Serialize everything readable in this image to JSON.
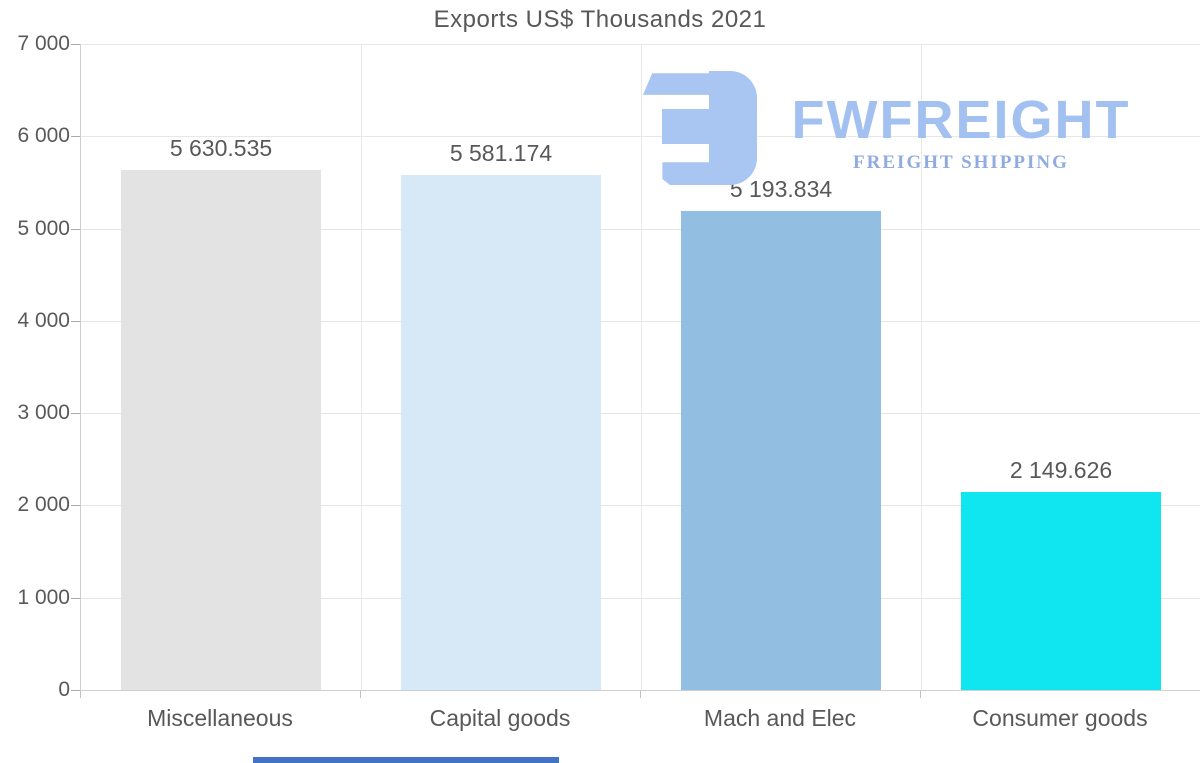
{
  "chart_data": {
    "type": "bar",
    "title": "Exports US$ Thousands 2021",
    "categories": [
      "Miscellaneous",
      "Capital goods",
      "Mach and Elec",
      "Consumer goods"
    ],
    "values": [
      5630.535,
      5581.174,
      5193.834,
      2149.626
    ],
    "value_labels": [
      "5 630.535",
      "5 581.174",
      "5 193.834",
      "2 149.626"
    ],
    "bar_colors": [
      "#e3e3e3",
      "#d7e8f7",
      "#92bfe1",
      "#0fe6ef"
    ],
    "ylim": [
      0,
      7000
    ],
    "yticks": [
      {
        "value": 7000,
        "label": "7 000"
      },
      {
        "value": 6000,
        "label": "6 000"
      },
      {
        "value": 5000,
        "label": "5 000"
      },
      {
        "value": 4000,
        "label": "4 000"
      },
      {
        "value": 3000,
        "label": "3 000"
      },
      {
        "value": 2000,
        "label": "2 000"
      },
      {
        "value": 1000,
        "label": "1 000"
      },
      {
        "value": 0,
        "label": "0"
      }
    ],
    "xlabel": "",
    "ylabel": "",
    "grid": "horizontal",
    "legend": "none"
  },
  "watermark": {
    "brand": "FWFREIGHT",
    "tagline": "FREIGHT SHIPPING",
    "logo_icon": "fwfreight-mark",
    "logo_color": "#a9c5f1",
    "brand_color": "#a3c1f0",
    "tagline_color": "#8fabdf"
  },
  "colors": {
    "background": "#ffffff",
    "title_text": "#58585a",
    "axis_text": "#595959",
    "gridline": "#e7e7e7",
    "axis_line": "#cfcfcf",
    "bottom_strip": "#4472c4"
  }
}
